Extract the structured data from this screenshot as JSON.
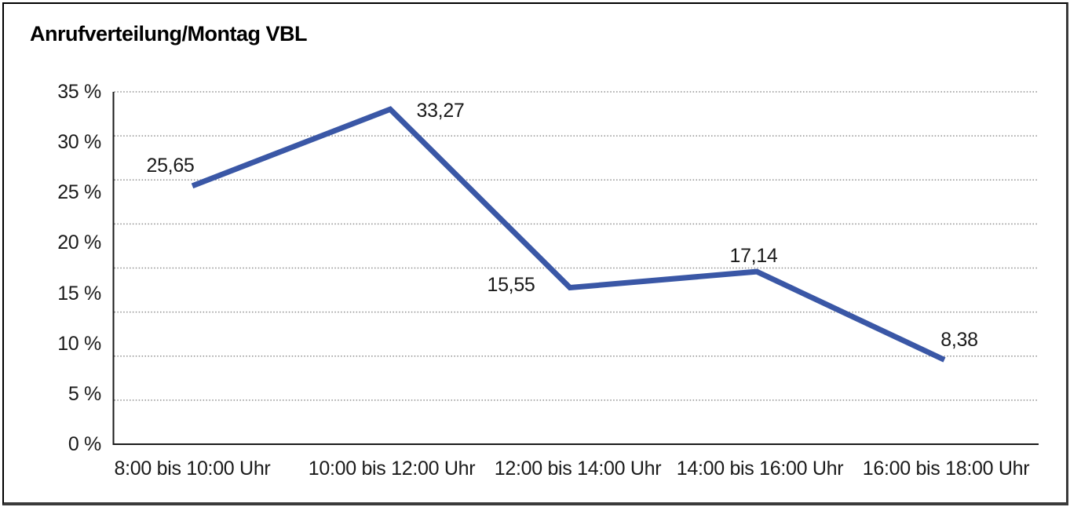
{
  "chart_data": {
    "type": "line",
    "title": "Anrufverteilung/Montag VBL",
    "categories": [
      "8:00 bis 10:00 Uhr",
      "10:00 bis 12:00 Uhr",
      "12:00 bis 14:00 Uhr",
      "14:00 bis 16:00 Uhr",
      "16:00 bis 18:00 Uhr"
    ],
    "series": [
      {
        "values": [
          25.65,
          33.27,
          15.55,
          17.14,
          8.38
        ],
        "value_labels": [
          "25,65",
          "33,27",
          "15,55",
          "17,14",
          "8,38"
        ]
      }
    ],
    "y_tick_labels": [
      "35 %",
      "30 %",
      "25 %",
      "20 %",
      "15 %",
      "10 %",
      "5 %",
      "0 %"
    ],
    "ylim": [
      0,
      35
    ],
    "y_tick_step": 5,
    "xlabel": "",
    "ylabel": "",
    "legend": "none",
    "grid": {
      "horizontal": true,
      "style": "dotted",
      "divisions": 8
    },
    "colors": {
      "line": "#3A57A6",
      "gridline": "#8f8f8f",
      "axis": "#1a1a1a",
      "text": "#1a1a1a"
    }
  }
}
